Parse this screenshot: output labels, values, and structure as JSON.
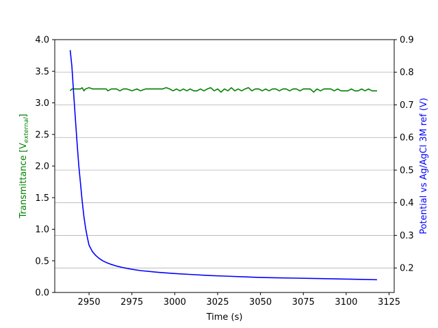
{
  "chart_data": {
    "type": "line",
    "title": "",
    "xlabel": "Time (s)",
    "ylabel_left": "Transmittance [V",
    "ylabel_left_sub": "external",
    "ylabel_left_close": "]",
    "ylabel_right": "Potential vs Ag/AgCl 3M ref (V)",
    "xlim": [
      2930,
      3128
    ],
    "ylim_left": [
      0,
      4.0
    ],
    "ylim_right": [
      0.125,
      0.9
    ],
    "xticks": [
      2950,
      2975,
      3000,
      3025,
      3050,
      3075,
      3100,
      3125
    ],
    "yticks_left": [
      0.0,
      0.5,
      1.0,
      1.5,
      2.0,
      2.5,
      3.0,
      3.5,
      4.0
    ],
    "yticks_right": [
      0.2,
      0.3,
      0.4,
      0.5,
      0.6,
      0.7,
      0.8,
      0.9
    ],
    "grid": "horizontal lines at right-axis ticks",
    "series": [
      {
        "axis": "left",
        "color": "#008000",
        "x": [
          2939,
          2940,
          2943,
          2945,
          2946,
          2947,
          2948,
          2950,
          2952,
          2955,
          2958,
          2960,
          2961,
          2963,
          2966,
          2968,
          2970,
          2972,
          2975,
          2978,
          2980,
          2983,
          2985,
          2988,
          2990,
          2993,
          2995,
          2997,
          2999,
          3001,
          3003,
          3005,
          3007,
          3009,
          3011,
          3013,
          3015,
          3017,
          3019,
          3021,
          3023,
          3025,
          3027,
          3029,
          3031,
          3033,
          3035,
          3037,
          3039,
          3041,
          3043,
          3045,
          3047,
          3049,
          3051,
          3053,
          3055,
          3057,
          3059,
          3061,
          3063,
          3065,
          3067,
          3069,
          3071,
          3073,
          3075,
          3077,
          3079,
          3081,
          3083,
          3085,
          3087,
          3089,
          3091,
          3093,
          3095,
          3097,
          3099,
          3101,
          3103,
          3105,
          3107,
          3109,
          3111,
          3113,
          3115,
          3118
        ],
        "values": [
          3.19,
          3.22,
          3.22,
          3.22,
          3.24,
          3.19,
          3.22,
          3.24,
          3.22,
          3.22,
          3.22,
          3.22,
          3.19,
          3.22,
          3.22,
          3.19,
          3.22,
          3.22,
          3.19,
          3.22,
          3.19,
          3.22,
          3.22,
          3.22,
          3.22,
          3.22,
          3.24,
          3.22,
          3.19,
          3.22,
          3.19,
          3.22,
          3.19,
          3.22,
          3.19,
          3.19,
          3.22,
          3.19,
          3.22,
          3.24,
          3.19,
          3.22,
          3.17,
          3.22,
          3.19,
          3.24,
          3.19,
          3.22,
          3.19,
          3.22,
          3.24,
          3.19,
          3.22,
          3.22,
          3.19,
          3.22,
          3.19,
          3.22,
          3.22,
          3.19,
          3.22,
          3.22,
          3.19,
          3.22,
          3.22,
          3.19,
          3.22,
          3.22,
          3.22,
          3.17,
          3.22,
          3.19,
          3.22,
          3.22,
          3.22,
          3.19,
          3.22,
          3.19,
          3.19,
          3.19,
          3.22,
          3.19,
          3.19,
          3.22,
          3.19,
          3.22,
          3.19,
          3.19
        ]
      },
      {
        "axis": "right",
        "color": "#0000ff",
        "x": [
          2939,
          2940,
          2941,
          2942,
          2943,
          2944,
          2945,
          2946,
          2947,
          2948,
          2949,
          2950,
          2952,
          2954,
          2956,
          2958,
          2960,
          2963,
          2966,
          2970,
          2975,
          2980,
          2990,
          3000,
          3010,
          3020,
          3030,
          3040,
          3050,
          3060,
          3070,
          3080,
          3090,
          3100,
          3110,
          3118
        ],
        "values": [
          0.868,
          0.818,
          0.737,
          0.66,
          0.585,
          0.515,
          0.46,
          0.405,
          0.358,
          0.322,
          0.294,
          0.27,
          0.25,
          0.238,
          0.229,
          0.222,
          0.217,
          0.211,
          0.206,
          0.201,
          0.196,
          0.192,
          0.187,
          0.183,
          0.18,
          0.177,
          0.175,
          0.173,
          0.171,
          0.17,
          0.169,
          0.168,
          0.167,
          0.166,
          0.165,
          0.164
        ]
      }
    ]
  }
}
